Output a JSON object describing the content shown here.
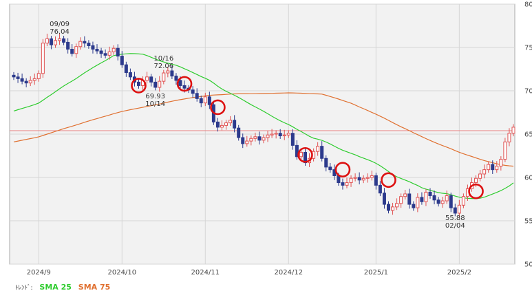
{
  "chart_data": {
    "type": "candlestick",
    "y_axis": {
      "ticks": [
        50,
        55,
        60,
        65,
        70,
        75,
        80
      ],
      "ylim": [
        50,
        80
      ],
      "position": "right"
    },
    "x_axis": {
      "tick_labels": [
        "2024/9",
        "2024/10",
        "2024/11",
        "2024/12",
        "2025/1",
        "2025/2"
      ],
      "tick_index": [
        6,
        26,
        46,
        66,
        87,
        107
      ]
    },
    "grid": true,
    "legend": {
      "prefix": "ﾄﾚﾝﾄﾞ:",
      "entries": [
        {
          "label": "SMA 25",
          "color": "#2ecc2e"
        },
        {
          "label": "SMA 75",
          "color": "#e07030"
        }
      ]
    },
    "colors": {
      "up": "#e05050",
      "down": "#2c3a8c",
      "sma25": "#2ecc2e",
      "sma75": "#e07030",
      "hline": "#e88080",
      "circle": "#dd1111"
    },
    "horizontal_line": 65.4,
    "candles_close": [
      71.6,
      71.4,
      71.1,
      70.9,
      71.2,
      71.4,
      72.0,
      75.5,
      76.0,
      75.3,
      75.8,
      76.0,
      75.6,
      74.8,
      74.3,
      75.1,
      75.7,
      75.5,
      75.2,
      74.8,
      74.6,
      74.3,
      74.1,
      74.5,
      74.9,
      74.0,
      73.0,
      72.1,
      71.6,
      71.0,
      70.6,
      71.2,
      71.6,
      71.0,
      70.4,
      71.1,
      72.06,
      72.3,
      71.7,
      71.2,
      70.6,
      70.3,
      70.1,
      69.7,
      69.1,
      68.6,
      69.3,
      68.4,
      66.4,
      65.8,
      66.0,
      66.3,
      66.6,
      65.7,
      64.6,
      63.9,
      64.2,
      64.5,
      64.7,
      64.3,
      64.6,
      64.9,
      65.0,
      65.1,
      64.8,
      64.9,
      65.1,
      63.7,
      62.4,
      62.9,
      61.7,
      62.2,
      63.0,
      63.6,
      62.2,
      61.2,
      60.9,
      60.2,
      59.4,
      59.1,
      59.4,
      59.9,
      60.0,
      59.7,
      59.9,
      60.0,
      60.2,
      59.1,
      58.2,
      56.9,
      56.2,
      56.6,
      57.0,
      57.8,
      58.1,
      56.9,
      56.5,
      57.7,
      57.2,
      58.3,
      57.9,
      57.4,
      57.0,
      57.3,
      57.9,
      56.5,
      55.88,
      56.8,
      57.8,
      58.7,
      59.4,
      59.9,
      60.4,
      60.9,
      61.5,
      60.9,
      61.3,
      62.1,
      64.1,
      65.1,
      65.8
    ],
    "annotations": [
      {
        "date": "09/09",
        "value": "76.04",
        "index": 11
      },
      {
        "date": "10/16",
        "value": "72.06",
        "index": 36
      },
      {
        "date": "10/14",
        "value": "69.93",
        "index": 34
      },
      {
        "date": "02/04",
        "value": "55.88",
        "index": 106
      }
    ],
    "markers": [
      {
        "index": 30,
        "value": 70.6
      },
      {
        "index": 41,
        "value": 70.8
      },
      {
        "index": 49,
        "value": 68.1
      },
      {
        "index": 70,
        "value": 62.6
      },
      {
        "index": 79,
        "value": 60.9
      },
      {
        "index": 90,
        "value": 59.7
      },
      {
        "index": 111,
        "value": 58.4
      }
    ]
  }
}
